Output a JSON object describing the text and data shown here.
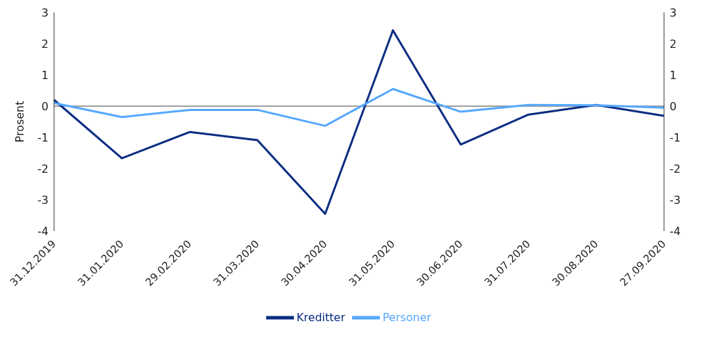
{
  "chart_data": {
    "type": "line",
    "ylabel": "Prosent",
    "categories": [
      "31.12.2019",
      "31.01.2020",
      "29.02.2020",
      "31.03.2020",
      "30.04.2020",
      "31.05.2020",
      "30.06.2020",
      "31.07.2020",
      "30.08.2020",
      "27.09.2020"
    ],
    "series": [
      {
        "name": "Kreditter",
        "color": "#0a2d82",
        "values": [
          0.2,
          -1.67,
          -0.83,
          -1.09,
          -3.45,
          2.43,
          -1.23,
          -0.27,
          0.04,
          -0.31
        ]
      },
      {
        "name": "Personer",
        "color": "#56a8ff",
        "values": [
          0.1,
          -0.35,
          -0.12,
          -0.12,
          -0.63,
          0.55,
          -0.18,
          0.04,
          0.03,
          -0.05
        ]
      }
    ],
    "ylim": [
      -4,
      3
    ],
    "yticks": [
      -4,
      -3,
      -2,
      -1,
      0,
      1,
      2,
      3
    ],
    "y2lim": [
      -4,
      3
    ],
    "y2ticks": [
      -4,
      -3,
      -2,
      -1,
      0,
      1,
      2,
      3
    ],
    "ref_lines": [
      {
        "axis": "y",
        "value": 0,
        "color": "#404040"
      }
    ],
    "grid": false,
    "legend": "bottom",
    "marker": "none",
    "line_style": "solid"
  }
}
